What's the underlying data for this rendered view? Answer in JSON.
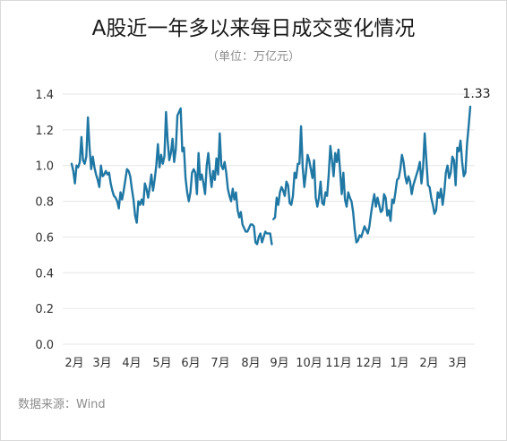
{
  "title": "A股近一年多以来每日成交变化情况",
  "subtitle": "（单位：万亿元）",
  "source": "数据来源：Wind",
  "colors": {
    "line": "#1f77a4",
    "grid": "#e6e6e6"
  },
  "chart_data": {
    "type": "line",
    "title": "A股近一年多以来每日成交变化情况",
    "subtitle": "（单位：万亿元）",
    "xlabel": "",
    "ylabel": "",
    "ylim": [
      0,
      1.4
    ],
    "yticks": [
      "0.0",
      "0.2",
      "0.4",
      "0.6",
      "0.8",
      "1.0",
      "1.2",
      "1.4"
    ],
    "xticks": [
      "2月",
      "3月",
      "4月",
      "5月",
      "6月",
      "7月",
      "8月",
      "9月",
      "10月",
      "11月",
      "12月",
      "1月",
      "2月",
      "3月"
    ],
    "grid": true,
    "legend": "none",
    "end_label": "1.33",
    "series": [
      {
        "values": [
          1.01,
          0.97,
          0.9,
          1.0,
          0.99,
          1.02,
          1.16,
          1.03,
          1.01,
          1.05,
          1.27,
          1.1,
          0.98,
          1.05,
          0.99,
          0.95,
          0.92,
          0.88,
          1.0,
          0.94,
          0.95,
          0.97,
          0.95,
          0.96,
          0.9,
          0.86,
          0.83,
          0.82,
          0.8,
          0.76,
          0.85,
          0.81,
          0.86,
          0.92,
          0.98,
          0.97,
          0.94,
          0.87,
          0.81,
          0.72,
          0.68,
          0.8,
          0.78,
          0.81,
          0.78,
          0.9,
          0.87,
          0.82,
          0.88,
          0.95,
          0.86,
          0.92,
          1.0,
          1.12,
          0.99,
          1.06,
          1.01,
          1.05,
          1.3,
          1.14,
          1.03,
          1.07,
          1.15,
          1.02,
          1.09,
          1.28,
          1.3,
          1.32,
          1.08,
          1.1,
          0.93,
          0.85,
          0.8,
          0.85,
          0.96,
          0.98,
          0.96,
          0.84,
          1.07,
          0.92,
          0.95,
          0.9,
          0.84,
          1.0,
          1.07,
          0.96,
          0.88,
          0.97,
          0.92,
          1.04,
          0.95,
          1.18,
          1.0,
          0.98,
          1.02,
          0.96,
          0.87,
          0.83,
          0.8,
          0.87,
          0.81,
          0.85,
          0.75,
          0.71,
          0.74,
          0.67,
          0.65,
          0.63,
          0.63,
          0.65,
          0.67,
          0.67,
          0.66,
          0.57,
          0.56,
          0.6,
          0.62,
          0.57,
          0.6,
          0.63,
          0.62,
          0.62,
          0.62,
          0.56
        ],
        "dates_note": "segment 1",
        "values_seg2": []
      }
    ],
    "segments": [
      {
        "name": "",
        "x_start": 0,
        "x_end": 7.55,
        "note": ""
      }
    ],
    "values_part2": [
      0.7,
      0.71,
      0.82,
      0.78,
      0.85,
      0.88,
      0.86,
      0.83,
      0.91,
      0.89,
      0.79,
      0.78,
      0.83,
      0.96,
      0.93,
      1.01,
      1.01,
      1.22,
      0.99,
      0.88,
      0.96,
      1.06,
      1.03,
      0.98,
      0.93,
      1.03,
      0.82,
      0.77,
      0.82,
      0.91,
      0.79,
      0.78,
      0.85,
      0.83,
      0.95,
      1.11,
      1.03,
      0.94,
      1.07,
      1.02,
      1.09,
      0.97,
      0.84,
      0.96,
      0.81,
      0.77,
      0.85,
      0.82,
      0.8,
      0.74,
      0.64,
      0.57,
      0.58,
      0.61,
      0.6,
      0.63,
      0.66,
      0.64,
      0.62,
      0.66,
      0.73,
      0.79,
      0.84,
      0.77,
      0.82,
      0.78,
      0.74,
      0.75,
      0.84,
      0.82,
      0.72,
      0.75,
      0.69,
      0.81,
      0.79,
      0.85,
      0.92,
      0.93,
      0.98,
      1.06,
      1.02,
      0.94,
      0.9,
      0.94,
      0.91,
      0.84,
      0.89,
      0.92,
      0.95,
      0.98,
      1.02,
      0.9,
      0.99,
      1.18,
      1.03,
      0.89,
      0.88,
      0.82,
      0.78,
      0.73,
      0.75,
      0.85,
      0.82,
      0.87,
      0.78,
      0.85,
      0.96,
      1.0,
      0.93,
      0.96,
      1.05,
      1.03,
      0.89,
      1.1,
      1.08,
      1.14,
      1.02,
      0.94,
      0.96,
      1.12,
      1.22,
      1.33
    ]
  }
}
